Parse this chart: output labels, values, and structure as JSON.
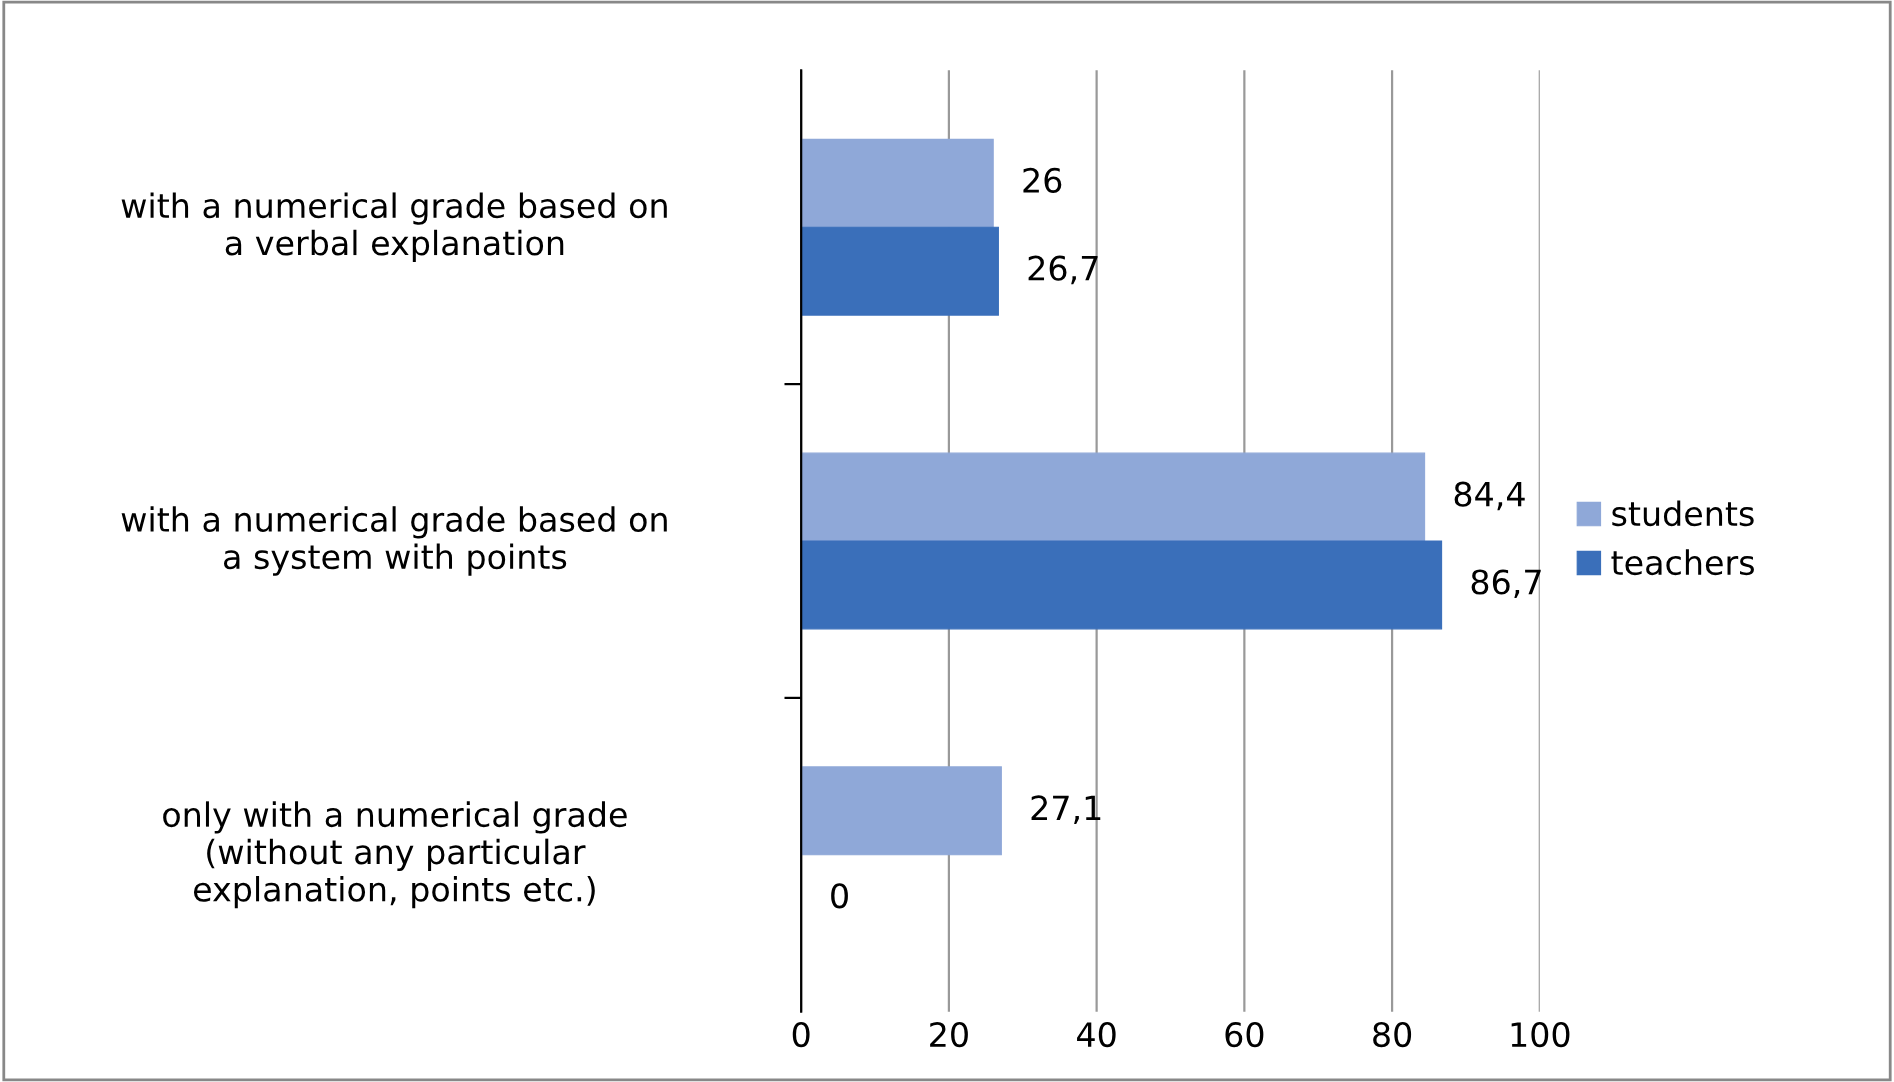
{
  "chart_data": {
    "type": "bar",
    "orientation": "horizontal",
    "categories": [
      "with a numerical grade based on\na verbal explanation",
      "with a numerical grade based on\na system with points",
      "only with a numerical grade\n(without any particular\nexplanation, points etc.)"
    ],
    "series": [
      {
        "name": "students",
        "color": "#8fa8d8",
        "values": [
          26,
          84.4,
          27.1
        ],
        "value_labels": [
          "26",
          "84,4",
          "27,1"
        ]
      },
      {
        "name": "teachers",
        "color": "#3a6fba",
        "values": [
          26.7,
          86.7,
          0
        ],
        "value_labels": [
          "26,7",
          "86,7",
          "0"
        ]
      }
    ],
    "xlim": [
      0,
      100
    ],
    "xticks": [
      0,
      20,
      40,
      60,
      80,
      100
    ],
    "grid": "x",
    "legend": "right"
  }
}
